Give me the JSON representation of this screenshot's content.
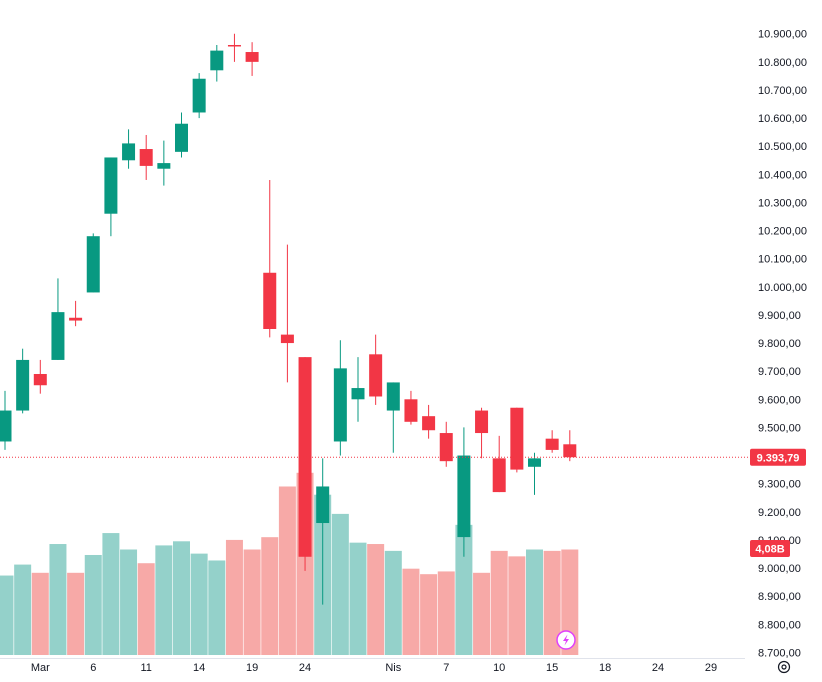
{
  "chart_data": {
    "type": "candlestick",
    "price_axis": {
      "ticks": [
        "10.900,00",
        "10.800,00",
        "10.700,00",
        "10.600,00",
        "10.500,00",
        "10.400,00",
        "10.300,00",
        "10.200,00",
        "10.100,00",
        "10.000,00",
        "9.900,00",
        "9.800,00",
        "9.700,00",
        "9.600,00",
        "9.500,00",
        "9.400,00",
        "9.300,00",
        "9.200,00",
        "9.100,00",
        "9.000,00",
        "8.900,00",
        "8.800,00",
        "8.700,00"
      ],
      "tick_values": [
        10900,
        10800,
        10700,
        10600,
        10500,
        10400,
        10300,
        10200,
        10100,
        10000,
        9900,
        9800,
        9700,
        9600,
        9500,
        9400,
        9300,
        9200,
        9100,
        9000,
        8900,
        8800,
        8700
      ],
      "range": [
        8680,
        11020
      ]
    },
    "time_axis": {
      "labels": [
        "Mar",
        "6",
        "11",
        "14",
        "19",
        "24",
        "Nis",
        "7",
        "10",
        "15",
        "18",
        "24",
        "29"
      ],
      "label_index": [
        2,
        5,
        8,
        11,
        14,
        17,
        22,
        25,
        28,
        31,
        34,
        37,
        40
      ]
    },
    "last_price": "9.393,79",
    "last_price_value": 9393.79,
    "last_volume": "4,08B",
    "colors": {
      "up": "#089981",
      "down": "#f23645",
      "vol_up": "#94d1ca",
      "vol_down": "#f7a9a7"
    },
    "candles": [
      {
        "o": 9450,
        "h": 9630,
        "l": 9420,
        "c": 9560
      },
      {
        "o": 9560,
        "h": 9780,
        "l": 9550,
        "c": 9740
      },
      {
        "o": 9690,
        "h": 9740,
        "l": 9620,
        "c": 9650
      },
      {
        "o": 9740,
        "h": 10030,
        "l": 9740,
        "c": 9910
      },
      {
        "o": 9890,
        "h": 9950,
        "l": 9860,
        "c": 9880
      },
      {
        "o": 9980,
        "h": 10190,
        "l": 9980,
        "c": 10180
      },
      {
        "o": 10260,
        "h": 10460,
        "l": 10180,
        "c": 10460
      },
      {
        "o": 10450,
        "h": 10560,
        "l": 10420,
        "c": 10510
      },
      {
        "o": 10490,
        "h": 10540,
        "l": 10380,
        "c": 10430
      },
      {
        "o": 10420,
        "h": 10520,
        "l": 10360,
        "c": 10440
      },
      {
        "o": 10480,
        "h": 10620,
        "l": 10460,
        "c": 10580
      },
      {
        "o": 10620,
        "h": 10760,
        "l": 10600,
        "c": 10740
      },
      {
        "o": 10770,
        "h": 10860,
        "l": 10730,
        "c": 10840
      },
      {
        "o": 10860,
        "h": 10900,
        "l": 10800,
        "c": 10855
      },
      {
        "o": 10835,
        "h": 10870,
        "l": 10750,
        "c": 10800
      },
      {
        "o": 10050,
        "h": 10380,
        "l": 9820,
        "c": 9850
      },
      {
        "o": 9830,
        "h": 10150,
        "l": 9660,
        "c": 9800
      },
      {
        "o": 9750,
        "h": 9750,
        "l": 8990,
        "c": 9040
      },
      {
        "o": 9160,
        "h": 9390,
        "l": 8870,
        "c": 9290
      },
      {
        "o": 9450,
        "h": 9810,
        "l": 9400,
        "c": 9710
      },
      {
        "o": 9600,
        "h": 9750,
        "l": 9520,
        "c": 9640
      },
      {
        "o": 9760,
        "h": 9830,
        "l": 9580,
        "c": 9610
      },
      {
        "o": 9560,
        "h": 9660,
        "l": 9410,
        "c": 9660
      },
      {
        "o": 9600,
        "h": 9630,
        "l": 9510,
        "c": 9520
      },
      {
        "o": 9540,
        "h": 9580,
        "l": 9460,
        "c": 9490
      },
      {
        "o": 9480,
        "h": 9520,
        "l": 9360,
        "c": 9380
      },
      {
        "o": 9110,
        "h": 9500,
        "l": 9040,
        "c": 9400
      },
      {
        "o": 9560,
        "h": 9570,
        "l": 9390,
        "c": 9480
      },
      {
        "o": 9390,
        "h": 9470,
        "l": 9270,
        "c": 9270
      },
      {
        "o": 9570,
        "h": 9570,
        "l": 9340,
        "c": 9350
      },
      {
        "o": 9360,
        "h": 9410,
        "l": 9260,
        "c": 9390
      },
      {
        "o": 9460,
        "h": 9490,
        "l": 9410,
        "c": 9420
      },
      {
        "o": 9440,
        "h": 9490,
        "l": 9380,
        "c": 9394
      }
    ],
    "volumes": [
      0.58,
      0.66,
      0.6,
      0.81,
      0.6,
      0.73,
      0.89,
      0.77,
      0.67,
      0.8,
      0.83,
      0.74,
      0.69,
      0.84,
      0.77,
      0.86,
      1.23,
      1.33,
      1.17,
      1.03,
      0.82,
      0.81,
      0.76,
      0.63,
      0.59,
      0.61,
      0.95,
      0.6,
      0.76,
      0.72,
      0.77,
      0.76,
      0.77
    ]
  },
  "icons": {
    "settings": "gear-icon",
    "badge": "lightning-icon"
  }
}
